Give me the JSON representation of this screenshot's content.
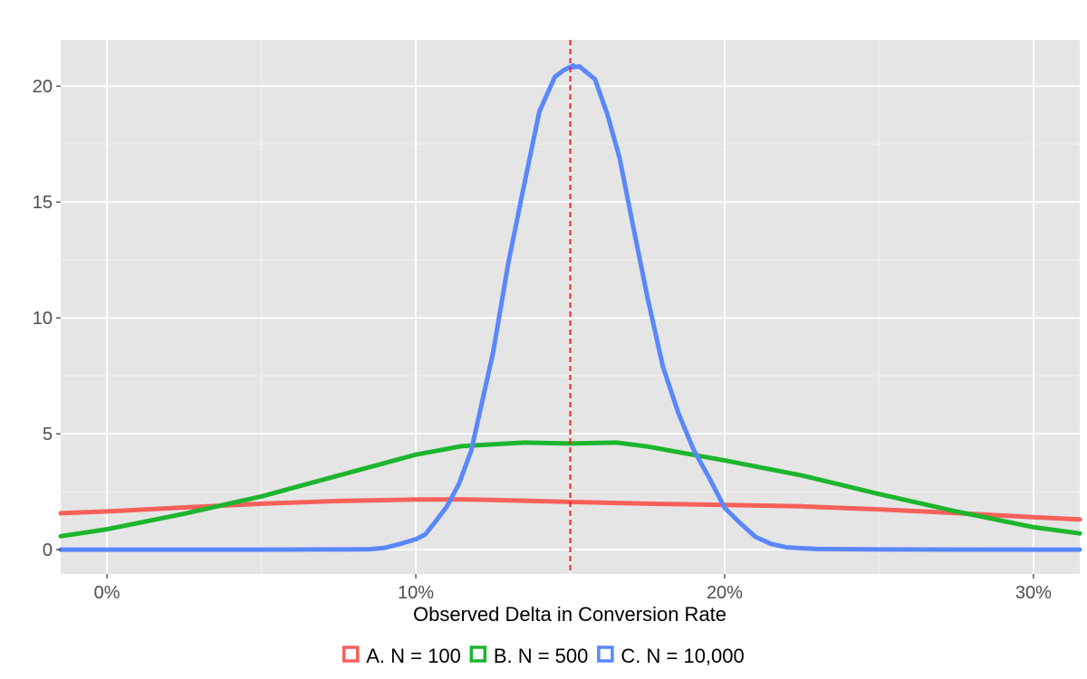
{
  "chart_data": {
    "type": "line",
    "title": "",
    "xlabel": "Observed Delta in Conversion Rate",
    "ylabel": "",
    "xlim": [
      -0.015,
      0.315
    ],
    "ylim": [
      -1.05,
      22.0
    ],
    "x_ticks": [
      0,
      0.1,
      0.2,
      0.3
    ],
    "x_tick_labels": [
      "0%",
      "10%",
      "20%",
      "30%"
    ],
    "x_minor_ticks": [
      0.05,
      0.15,
      0.25
    ],
    "y_ticks": [
      0,
      5,
      10,
      15,
      20
    ],
    "y_tick_labels": [
      "0",
      "5",
      "10",
      "15",
      "20"
    ],
    "y_minor_ticks": [
      2.5,
      7.5,
      12.5,
      17.5
    ],
    "grid": true,
    "panel_background": "#e5e5e5",
    "legend_position": "bottom",
    "reference_line": {
      "x": 0.15,
      "color": "#e41a1c",
      "style": "dashed"
    },
    "series": [
      {
        "name": "A. N = 100",
        "color": "#f8605a",
        "x": [
          -0.015,
          0.0,
          0.025,
          0.05,
          0.075,
          0.1,
          0.115,
          0.125,
          0.15,
          0.175,
          0.2,
          0.225,
          0.25,
          0.275,
          0.3,
          0.315
        ],
        "y": [
          1.57,
          1.65,
          1.82,
          1.98,
          2.1,
          2.16,
          2.17,
          2.14,
          2.06,
          1.98,
          1.93,
          1.87,
          1.74,
          1.58,
          1.4,
          1.3
        ]
      },
      {
        "name": "B. N = 500",
        "color": "#1db52d",
        "x": [
          -0.015,
          0.0,
          0.025,
          0.05,
          0.075,
          0.1,
          0.115,
          0.135,
          0.15,
          0.165,
          0.175,
          0.2,
          0.225,
          0.25,
          0.275,
          0.3,
          0.315
        ],
        "y": [
          0.58,
          0.88,
          1.55,
          2.3,
          3.2,
          4.1,
          4.47,
          4.62,
          4.58,
          4.62,
          4.45,
          3.85,
          3.2,
          2.4,
          1.65,
          0.97,
          0.7
        ]
      },
      {
        "name": "C. N = 10,000",
        "color": "#5a87fb",
        "x": [
          -0.015,
          0.0,
          0.05,
          0.08,
          0.085,
          0.09,
          0.095,
          0.1,
          0.103,
          0.106,
          0.11,
          0.114,
          0.118,
          0.12,
          0.125,
          0.13,
          0.135,
          0.14,
          0.145,
          0.148,
          0.151,
          0.15,
          0.153,
          0.158,
          0.162,
          0.166,
          0.17,
          0.175,
          0.18,
          0.185,
          0.19,
          0.195,
          0.2,
          0.205,
          0.21,
          0.215,
          0.22,
          0.23,
          0.25,
          0.3,
          0.315
        ],
        "y": [
          0.0,
          0.0,
          0.0,
          0.01,
          0.02,
          0.08,
          0.25,
          0.45,
          0.65,
          1.15,
          1.85,
          2.85,
          4.3,
          5.5,
          8.5,
          12.4,
          15.7,
          18.9,
          20.4,
          20.7,
          20.9,
          20.8,
          20.85,
          20.3,
          18.8,
          16.9,
          14.2,
          10.9,
          7.9,
          5.9,
          4.3,
          3.1,
          1.8,
          1.15,
          0.55,
          0.25,
          0.1,
          0.03,
          0.01,
          0.0,
          0.0
        ]
      }
    ]
  }
}
